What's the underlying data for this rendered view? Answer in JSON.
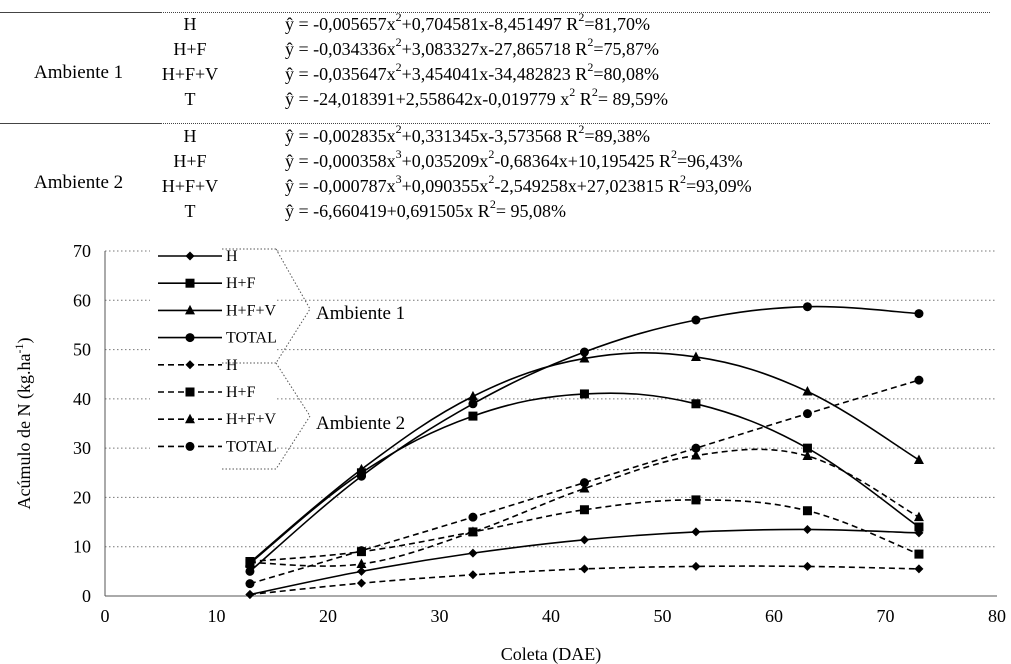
{
  "equations": {
    "ambiente1": {
      "label": "Ambiente 1",
      "rows": [
        {
          "code": "H",
          "eq_html": "ŷ = -0,005657x<sup>2</sup>+0,704581x-8,451497 R<sup>2</sup>=81,70%"
        },
        {
          "code": "H+F",
          "eq_html": "ŷ = -0,034336x<sup>2</sup>+3,083327x-27,865718 R<sup>2</sup>=75,87%"
        },
        {
          "code": "H+F+V",
          "eq_html": "ŷ = -0,035647x<sup>2</sup>+3,454041x-34,482823 R<sup>2</sup>=80,08%"
        },
        {
          "code": "T",
          "eq_html": "ŷ = -24,018391+2,558642x-0,019779 x<sup>2</sup> R<sup>2</sup>= 89,59%"
        }
      ]
    },
    "ambiente2": {
      "label": "Ambiente 2",
      "rows": [
        {
          "code": "H",
          "eq_html": "ŷ = -0,002835x<sup>2</sup>+0,331345x-3,573568 R<sup>2</sup>=89,38%"
        },
        {
          "code": "H+F",
          "eq_html": "ŷ = -0,000358x<sup>3</sup>+0,035209x<sup>2</sup>-0,68364x+10,195425 R<sup>2</sup>=96,43%"
        },
        {
          "code": "H+F+V",
          "eq_html": "ŷ = -0,000787x<sup>3</sup>+0,090355x<sup>2</sup>-2,549258x+27,023815 R<sup>2</sup>=93,09%"
        },
        {
          "code": "T",
          "eq_html": "ŷ = -6,660419+0,691505x R<sup>2</sup>= 95,08%"
        }
      ]
    }
  },
  "chart_data": {
    "type": "line",
    "xlabel": "Coleta (DAE)",
    "ylabel_html": "Acúmulo de N (kg.ha<tspan dy=\"-7\" font-size=\"12\">-1</tspan><tspan dy=\"7\">)</tspan>",
    "xlim": [
      0,
      80
    ],
    "ylim": [
      0,
      70
    ],
    "xticks": [
      0,
      10,
      20,
      30,
      40,
      50,
      60,
      70,
      80
    ],
    "yticks": [
      0,
      10,
      20,
      30,
      40,
      50,
      60,
      70
    ],
    "grid": "horizontal dotted",
    "x": [
      13,
      23,
      33,
      43,
      53,
      63,
      73
    ],
    "legend_groups": [
      "Ambiente 1",
      "Ambiente 2"
    ],
    "series": [
      {
        "name": "H",
        "group": "Ambiente 1",
        "marker": "diamond",
        "dash": false,
        "values": [
          0.3,
          5.0,
          8.7,
          11.4,
          13.0,
          13.5,
          12.8
        ]
      },
      {
        "name": "H+F",
        "group": "Ambiente 1",
        "marker": "square",
        "dash": false,
        "values": [
          6.6,
          25.0,
          36.5,
          41.0,
          39.0,
          30.0,
          14.0
        ]
      },
      {
        "name": "H+F+V",
        "group": "Ambiente 1",
        "marker": "triangle",
        "dash": false,
        "values": [
          6.8,
          25.7,
          40.5,
          48.2,
          48.5,
          41.5,
          27.6
        ]
      },
      {
        "name": "TOTAL",
        "group": "Ambiente 1",
        "marker": "circle",
        "dash": false,
        "values": [
          5.0,
          24.3,
          39.0,
          49.5,
          56.0,
          58.7,
          57.3
        ]
      },
      {
        "name": "H",
        "group": "Ambiente 2",
        "marker": "diamond",
        "dash": true,
        "values": [
          0.3,
          2.6,
          4.3,
          5.5,
          6.0,
          6.0,
          5.5
        ]
      },
      {
        "name": "H+F",
        "group": "Ambiente 2",
        "marker": "square",
        "dash": true,
        "values": [
          7.0,
          9.0,
          13.0,
          17.5,
          19.5,
          17.3,
          8.5
        ]
      },
      {
        "name": "H+F+V",
        "group": "Ambiente 2",
        "marker": "triangle",
        "dash": true,
        "values": [
          6.8,
          6.5,
          13.0,
          21.8,
          28.5,
          28.4,
          16.0
        ]
      },
      {
        "name": "TOTAL",
        "group": "Ambiente 2",
        "marker": "circle",
        "dash": true,
        "values": [
          2.5,
          9.2,
          16.0,
          23.0,
          30.0,
          37.0,
          43.8
        ]
      }
    ]
  }
}
